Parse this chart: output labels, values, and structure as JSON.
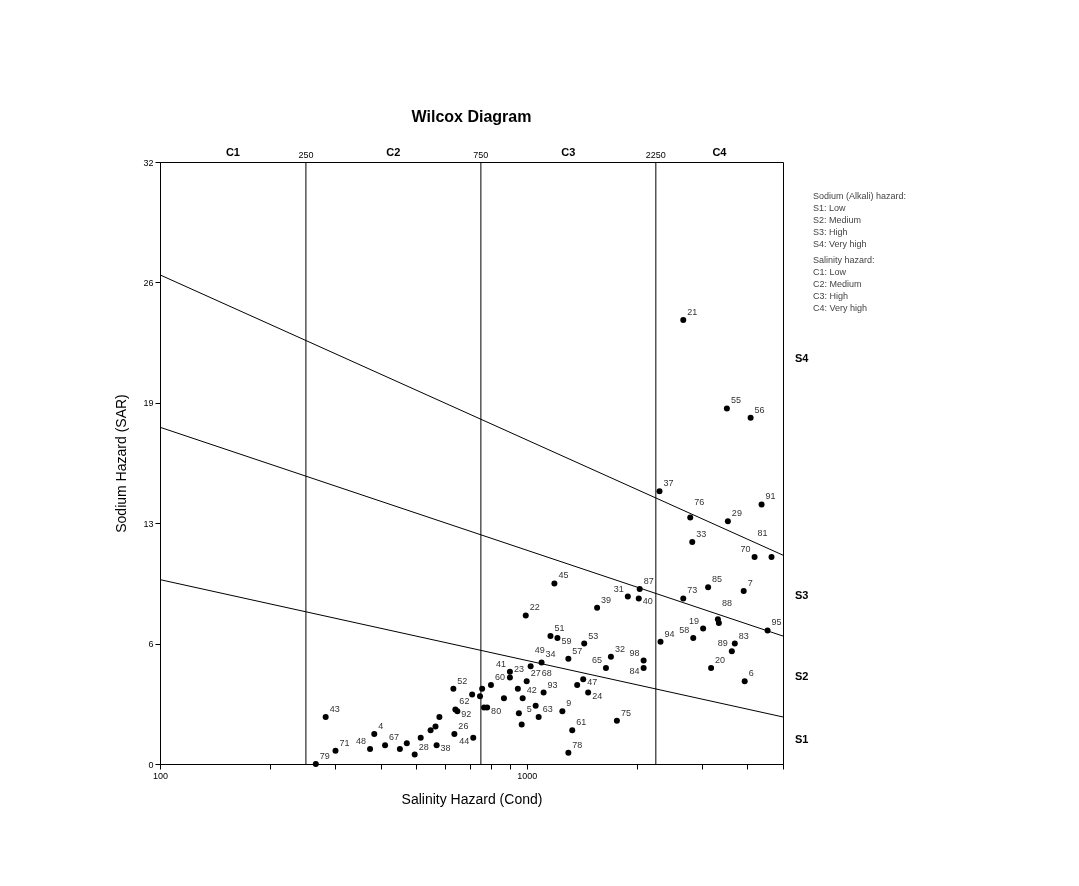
{
  "chart_data": {
    "type": "scatter",
    "title": "Wilcox Diagram",
    "xlabel": "Salinity Hazard (Cond)",
    "ylabel": "Sodium Hazard (SAR)",
    "log": "x",
    "xlim": [
      100,
      5000
    ],
    "xticks": [
      100,
      {
        "value": 200,
        "label": null
      },
      {
        "value": 300,
        "label": null
      },
      {
        "value": 400,
        "label": null
      },
      {
        "value": 500,
        "label": null
      },
      {
        "value": 600,
        "label": null
      },
      {
        "value": 700,
        "label": null
      },
      {
        "value": 800,
        "label": null
      },
      {
        "value": 900,
        "label": null
      },
      1000,
      {
        "value": 2000,
        "label": null
      },
      {
        "value": 3000,
        "label": null
      },
      {
        "value": 4000,
        "label": null
      },
      {
        "value": 5000,
        "label": null
      }
    ],
    "ylim": [
      0,
      32
    ],
    "yticks": [
      0,
      {
        "value": 6.4,
        "label": "6"
      },
      {
        "value": 12.8,
        "label": "13"
      },
      {
        "value": 19.2,
        "label": "19"
      },
      {
        "value": 25.6,
        "label": "26"
      },
      32
    ],
    "series": [
      {
        "type": "scatter",
        "marker": "circle",
        "color": "#000000",
        "x": [
          2673,
          3515,
          4080,
          2302,
          4370,
          2793,
          3537,
          2828,
          4183,
          4652,
          2033,
          1887,
          2021,
          1556,
          2673,
          3124,
          3907,
          3028,
          3322,
          3343,
          2846,
          2317,
          4538,
          3694,
          3626,
          3183,
          3931,
          1697,
          1645,
          2084,
          2084,
          1762,
          1190,
          994,
          1161,
          1213,
          1435,
          1299,
          1098,
          1025,
          900,
          900,
          1000,
          799,
          631,
          1112,
          1426,
          1373,
          1471,
          975,
          946,
          1251,
          1078,
          1058,
          952,
          969,
          1331,
          1299,
          635,
          715,
          568,
          283,
          384,
          301,
          266,
          374,
          411,
          451,
          471,
          514,
          495,
          547,
          564,
          578,
          639,
          647,
          710,
          746,
          756,
          780,
          765,
          867
        ],
        "values": [
          23.6,
          18.9,
          18.4,
          14.5,
          13.8,
          13.1,
          12.9,
          11.8,
          11.0,
          11.0,
          9.3,
          8.9,
          8.8,
          8.3,
          8.8,
          9.4,
          9.2,
          7.2,
          7.7,
          7.5,
          6.7,
          6.5,
          7.1,
          6.4,
          6.0,
          5.1,
          4.4,
          5.7,
          5.1,
          5.5,
          5.1,
          2.3,
          9.6,
          7.9,
          6.8,
          6.7,
          6.4,
          5.6,
          5.4,
          5.2,
          4.9,
          4.6,
          4.4,
          4.2,
          4.0,
          3.8,
          4.5,
          4.2,
          3.8,
          3.5,
          4.0,
          2.8,
          2.5,
          3.1,
          2.7,
          2.1,
          1.8,
          0.6,
          1.6,
          1.4,
          1.0,
          2.5,
          1.6,
          0.7,
          0.0,
          0.8,
          1.0,
          0.8,
          1.1,
          1.4,
          0.5,
          1.8,
          2.0,
          2.5,
          2.9,
          2.8,
          3.7,
          3.6,
          4.0,
          3.0,
          3.0,
          3.5
        ]
      },
      {
        "type": "line",
        "color": "#000000",
        "x": [
          100,
          5000
        ],
        "values": [
          26.0,
          11.1
        ]
      },
      {
        "type": "line",
        "color": "#000000",
        "x": [
          100,
          5000
        ],
        "values": [
          17.9,
          6.8
        ]
      },
      {
        "type": "line",
        "color": "#000000",
        "x": [
          100,
          5000
        ],
        "values": [
          9.8,
          2.5
        ]
      }
    ],
    "ref_lines": [
      {
        "axis": "x",
        "value": 250,
        "label": "250"
      },
      {
        "axis": "x",
        "value": 750,
        "label": "750"
      },
      {
        "axis": "x",
        "value": 2250,
        "label": "2250"
      }
    ],
    "annotations": [
      {
        "text": "21",
        "x": 2673,
        "y": 23.6
      },
      {
        "text": "55",
        "x": 3515,
        "y": 18.9
      },
      {
        "text": "56",
        "x": 4080,
        "y": 18.4
      },
      {
        "text": "37",
        "x": 2302,
        "y": 14.5
      },
      {
        "text": "91",
        "x": 4370,
        "y": 13.8
      },
      {
        "text": "76",
        "x": 2793,
        "y": 13.1
      },
      {
        "text": "29",
        "x": 3537,
        "y": 12.9
      },
      {
        "text": "33",
        "x": 2828,
        "y": 11.8
      },
      {
        "text": "70",
        "x": 4183,
        "y": 11.0
      },
      {
        "text": "81",
        "x": 4652,
        "y": 11.0
      },
      {
        "text": "87",
        "x": 2033,
        "y": 9.3
      },
      {
        "text": "31",
        "x": 1887,
        "y": 8.9
      },
      {
        "text": "40",
        "x": 2021,
        "y": 8.8
      },
      {
        "text": "39",
        "x": 1556,
        "y": 8.3
      },
      {
        "text": "73",
        "x": 2673,
        "y": 8.8
      },
      {
        "text": "85",
        "x": 3124,
        "y": 9.4
      },
      {
        "text": "7",
        "x": 3907,
        "y": 9.2
      },
      {
        "text": "19",
        "x": 3028,
        "y": 7.2
      },
      {
        "text": "88",
        "x": 3322,
        "y": 7.7
      },
      {
        "text": "58",
        "x": 2846,
        "y": 6.7
      },
      {
        "text": "94",
        "x": 2317,
        "y": 6.5
      },
      {
        "text": "95",
        "x": 4538,
        "y": 7.1
      },
      {
        "text": "83",
        "x": 3694,
        "y": 6.4
      },
      {
        "text": "89",
        "x": 3626,
        "y": 6.0
      },
      {
        "text": "20",
        "x": 3183,
        "y": 5.1
      },
      {
        "text": "6",
        "x": 3931,
        "y": 4.4
      },
      {
        "text": "32",
        "x": 1697,
        "y": 5.7
      },
      {
        "text": "65",
        "x": 1645,
        "y": 5.1
      },
      {
        "text": "98",
        "x": 2084,
        "y": 5.5
      },
      {
        "text": "84",
        "x": 2084,
        "y": 5.1
      },
      {
        "text": "75",
        "x": 1762,
        "y": 2.3
      },
      {
        "text": "45",
        "x": 1190,
        "y": 9.6
      },
      {
        "text": "22",
        "x": 994,
        "y": 7.9
      },
      {
        "text": "51",
        "x": 1161,
        "y": 6.8
      },
      {
        "text": "59",
        "x": 1213,
        "y": 6.7
      },
      {
        "text": "53",
        "x": 1435,
        "y": 6.4
      },
      {
        "text": "57",
        "x": 1299,
        "y": 5.6
      },
      {
        "text": "34",
        "x": 1098,
        "y": 5.4
      },
      {
        "text": "49",
        "x": 1025,
        "y": 5.2
      },
      {
        "text": "41",
        "x": 900,
        "y": 4.9
      },
      {
        "text": "23",
        "x": 900,
        "y": 4.6
      },
      {
        "text": "27",
        "x": 1000,
        "y": 4.4
      },
      {
        "text": "60",
        "x": 799,
        "y": 4.2
      },
      {
        "text": "52",
        "x": 631,
        "y": 4.0
      },
      {
        "text": "93",
        "x": 1112,
        "y": 3.8
      },
      {
        "text": "47",
        "x": 1426,
        "y": 4.5
      },
      {
        "text": "24",
        "x": 1471,
        "y": 3.8
      },
      {
        "text": "42",
        "x": 975,
        "y": 3.5
      },
      {
        "text": "68",
        "x": 946,
        "y": 4.0
      },
      {
        "text": "9",
        "x": 1251,
        "y": 2.8
      },
      {
        "text": "63",
        "x": 1078,
        "y": 2.5
      },
      {
        "text": "5",
        "x": 1058,
        "y": 3.1
      },
      {
        "text": "61",
        "x": 1331,
        "y": 1.8
      },
      {
        "text": "78",
        "x": 1299,
        "y": 0.6
      },
      {
        "text": "26",
        "x": 635,
        "y": 1.6
      },
      {
        "text": "44",
        "x": 715,
        "y": 1.4
      },
      {
        "text": "38",
        "x": 568,
        "y": 1.0
      },
      {
        "text": "43",
        "x": 283,
        "y": 2.5
      },
      {
        "text": "4",
        "x": 384,
        "y": 1.6
      },
      {
        "text": "71",
        "x": 301,
        "y": 0.7
      },
      {
        "text": "79",
        "x": 266,
        "y": 0.0
      },
      {
        "text": "48",
        "x": 374,
        "y": 0.8
      },
      {
        "text": "67",
        "x": 411,
        "y": 1.0
      },
      {
        "text": "28",
        "x": 495,
        "y": 0.5
      },
      {
        "text": "62",
        "x": 639,
        "y": 2.9
      },
      {
        "text": "92",
        "x": 647,
        "y": 2.8
      },
      {
        "text": "80",
        "x": 780,
        "y": 3.0
      },
      "C1",
      "C2",
      "C3",
      "C4",
      "S4",
      "S3",
      "S2",
      "S1",
      "Sodium (Alkali) hazard:",
      "S1: Low",
      "S2: Medium",
      "S3: High",
      "S4: Very high",
      "Salinity hazard:",
      "C1: Low",
      "C2: Medium",
      "C3: High",
      "C4: Very high"
    ]
  }
}
